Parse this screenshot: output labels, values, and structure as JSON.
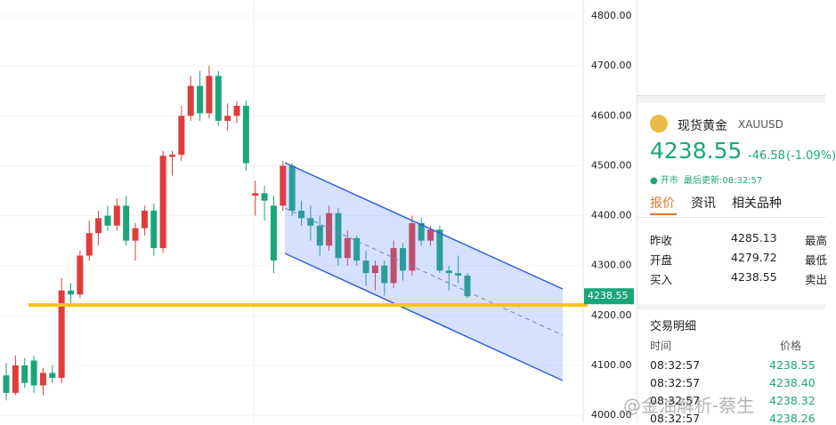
{
  "chart_data": {
    "type": "candlestick",
    "up_color": "#e03c3c",
    "down_color": "#1aa67a",
    "ylim": [
      3986,
      4832
    ],
    "yticks": [
      {
        "value": 4000,
        "label": "4000.00"
      },
      {
        "value": 4100,
        "label": "4100.00"
      },
      {
        "value": 4200,
        "label": "4200.00"
      },
      {
        "value": 4300,
        "label": "4300.00"
      },
      {
        "value": 4400,
        "label": "4400.00"
      },
      {
        "value": 4500,
        "label": "4500.00"
      },
      {
        "value": 4600,
        "label": "4600.00"
      },
      {
        "value": 4700,
        "label": "4700.00"
      },
      {
        "value": 4800,
        "label": "4800.00"
      }
    ],
    "last_price": {
      "value": 4238.55,
      "label": "4238.55"
    },
    "candles": [
      [
        4080,
        4105,
        4030,
        4045
      ],
      [
        4045,
        4120,
        4040,
        4100
      ],
      [
        4100,
        4115,
        4055,
        4065
      ],
      [
        4110,
        4120,
        4045,
        4060
      ],
      [
        4060,
        4095,
        4040,
        4085
      ],
      [
        4085,
        4100,
        4065,
        4075
      ],
      [
        4075,
        4275,
        4065,
        4250
      ],
      [
        4250,
        4265,
        4225,
        4242
      ],
      [
        4242,
        4330,
        4235,
        4320
      ],
      [
        4320,
        4390,
        4310,
        4365
      ],
      [
        4365,
        4410,
        4340,
        4395
      ],
      [
        4400,
        4420,
        4370,
        4380
      ],
      [
        4380,
        4435,
        4370,
        4420
      ],
      [
        4420,
        4440,
        4340,
        4350
      ],
      [
        4350,
        4385,
        4310,
        4375
      ],
      [
        4375,
        4420,
        4360,
        4410
      ],
      [
        4410,
        4425,
        4320,
        4335
      ],
      [
        4335,
        4530,
        4325,
        4520
      ],
      [
        4518,
        4530,
        4480,
        4522
      ],
      [
        4522,
        4620,
        4510,
        4600
      ],
      [
        4600,
        4680,
        4590,
        4660
      ],
      [
        4660,
        4690,
        4590,
        4605
      ],
      [
        4605,
        4700,
        4595,
        4680
      ],
      [
        4680,
        4690,
        4580,
        4590
      ],
      [
        4590,
        4625,
        4570,
        4600
      ],
      [
        4600,
        4630,
        4585,
        4620
      ],
      [
        4620,
        4630,
        4490,
        4505
      ],
      [
        4440,
        4470,
        4400,
        4445
      ],
      [
        4445,
        4460,
        4390,
        4430
      ],
      [
        4420,
        4440,
        4285,
        4310
      ],
      [
        4420,
        4510,
        4410,
        4500
      ],
      [
        4500,
        4505,
        4400,
        4410
      ],
      [
        4410,
        4430,
        4380,
        4395
      ],
      [
        4395,
        4420,
        4350,
        4380
      ],
      [
        4380,
        4400,
        4320,
        4340
      ],
      [
        4340,
        4420,
        4330,
        4405
      ],
      [
        4405,
        4415,
        4300,
        4315
      ],
      [
        4315,
        4370,
        4300,
        4355
      ],
      [
        4355,
        4360,
        4300,
        4310
      ],
      [
        4310,
        4330,
        4260,
        4285
      ],
      [
        4285,
        4310,
        4250,
        4300
      ],
      [
        4300,
        4310,
        4240,
        4265
      ],
      [
        4265,
        4350,
        4255,
        4335
      ],
      [
        4335,
        4345,
        4270,
        4290
      ],
      [
        4290,
        4400,
        4280,
        4385
      ],
      [
        4385,
        4395,
        4340,
        4350
      ],
      [
        4350,
        4380,
        4340,
        4372
      ],
      [
        4372,
        4380,
        4285,
        4290
      ],
      [
        4290,
        4300,
        4250,
        4285
      ],
      [
        4285,
        4320,
        4265,
        4280
      ],
      [
        4279.72,
        4285,
        4235,
        4238.55
      ]
    ]
  },
  "quote": {
    "name": "现货黄金",
    "symbol": "XAUUSD",
    "price": "4238.55",
    "change": "-46.58",
    "change_pct": "(-1.09%)",
    "status": "● 开市",
    "updated": "最后更新:08:32:57",
    "tabs": [
      "报价",
      "资讯",
      "相关品种"
    ],
    "stats": [
      [
        "昨收",
        "4285.13",
        "最高"
      ],
      [
        "开盘",
        "4279.72",
        "最低"
      ],
      [
        "买入",
        "4238.55",
        "卖出"
      ]
    ],
    "trades_title": "交易明细",
    "trades_header": [
      "时间",
      "价格"
    ],
    "trades": [
      [
        "08:32:57",
        "4238.55"
      ],
      [
        "08:32:57",
        "4238.40"
      ],
      [
        "08:32:57",
        "4238.32"
      ],
      [
        "08:32:57",
        "4238.26"
      ]
    ]
  },
  "watermark": "@金油解析-蔡生"
}
